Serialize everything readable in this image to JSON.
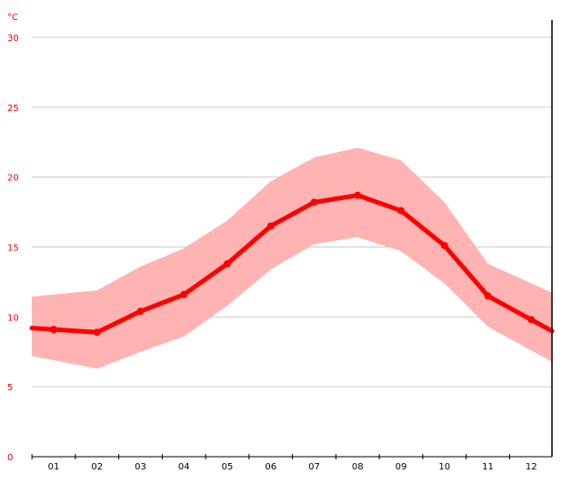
{
  "chart_data": {
    "type": "line",
    "y_unit": "°C",
    "categories": [
      "01",
      "02",
      "03",
      "04",
      "05",
      "06",
      "07",
      "08",
      "09",
      "10",
      "11",
      "12"
    ],
    "ylim": [
      0,
      30
    ],
    "y_ticks": [
      0,
      5,
      10,
      15,
      20,
      25,
      30
    ],
    "grid": true,
    "legend": "none",
    "colors": {
      "line": "#ff0000",
      "band": "#ffb3b3",
      "grid": "#cccccc",
      "axis": "#000000",
      "y_labels": "#ff0000",
      "x_labels": "#000000"
    },
    "series": [
      {
        "values": [
          9.1,
          8.9,
          10.4,
          11.6,
          13.8,
          16.5,
          18.2,
          18.7,
          17.6,
          15.1,
          11.5,
          9.8
        ]
      }
    ],
    "range": {
      "lower": [
        6.9,
        6.3,
        7.5,
        8.6,
        10.8,
        13.4,
        15.2,
        15.7,
        14.7,
        12.4,
        9.3,
        7.6
      ],
      "upper": [
        11.6,
        11.9,
        13.6,
        14.9,
        16.9,
        19.7,
        21.4,
        22.1,
        21.2,
        18.2,
        13.8,
        12.4
      ]
    }
  }
}
